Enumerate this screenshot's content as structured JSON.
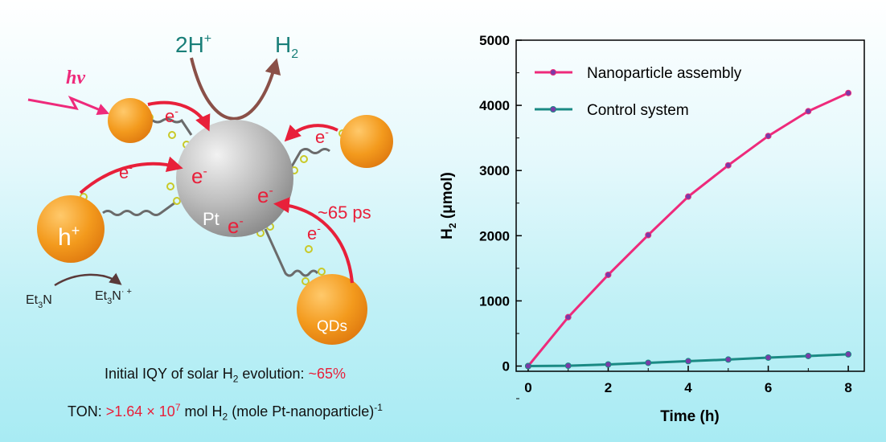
{
  "scheme": {
    "reactant": "2H",
    "reactant_sup": "+",
    "product": "H",
    "product_sub": "2",
    "light": "hν",
    "electron": "e",
    "electron_sup": "-",
    "hole": "h",
    "hole_sup": "+",
    "pt_label": "Pt",
    "qd_label": "QDs",
    "time_label": "~65 ps",
    "donor_a": "Et",
    "donor_a_sub": "3",
    "donor_a_end": "N",
    "donor_b": "Et",
    "donor_b_sub": "3",
    "donor_b_end": "N",
    "donor_b_sup": "· +"
  },
  "captions": {
    "iqy_prefix": "Initial IQY of solar H",
    "iqy_sub": "2",
    "iqy_mid": " evolution: ",
    "iqy_value": "~65%",
    "ton_prefix": "TON: ",
    "ton_value": ">1.64 × 10",
    "ton_exp": "7",
    "ton_mid": " mol H",
    "ton_sub": "2",
    "ton_end": " (mole Pt-nanoparticle)",
    "ton_end_sup": "-1"
  },
  "colors": {
    "pink": "#ee2a7b",
    "teal": "#1a8a84",
    "red": "#e8203a",
    "orange": "#f39a1d",
    "brown": "#8a5048"
  },
  "chart_data": {
    "type": "line",
    "xlabel": "Time (h)",
    "ylabel": "H",
    "ylabel_sub": "2",
    "ylabel_unit": " (μmol)",
    "xlim": [
      -0.3,
      8.4
    ],
    "ylim": [
      -80,
      5000
    ],
    "xticks": [
      "0",
      "2",
      "4",
      "6",
      "8"
    ],
    "yticks": [
      "0",
      "1000",
      "2000",
      "3000",
      "4000",
      "5000"
    ],
    "x": [
      0,
      1,
      2,
      3,
      4,
      5,
      6,
      7,
      8
    ],
    "legend_position": "top-left",
    "series": [
      {
        "name": "Nanoparticle assembly",
        "color": "#ee2a7b",
        "values": [
          0,
          750,
          1400,
          2010,
          2600,
          3080,
          3530,
          3910,
          4190
        ]
      },
      {
        "name": "Control system",
        "color": "#1a8a84",
        "values": [
          0,
          5,
          25,
          50,
          75,
          100,
          130,
          155,
          180
        ]
      }
    ]
  }
}
